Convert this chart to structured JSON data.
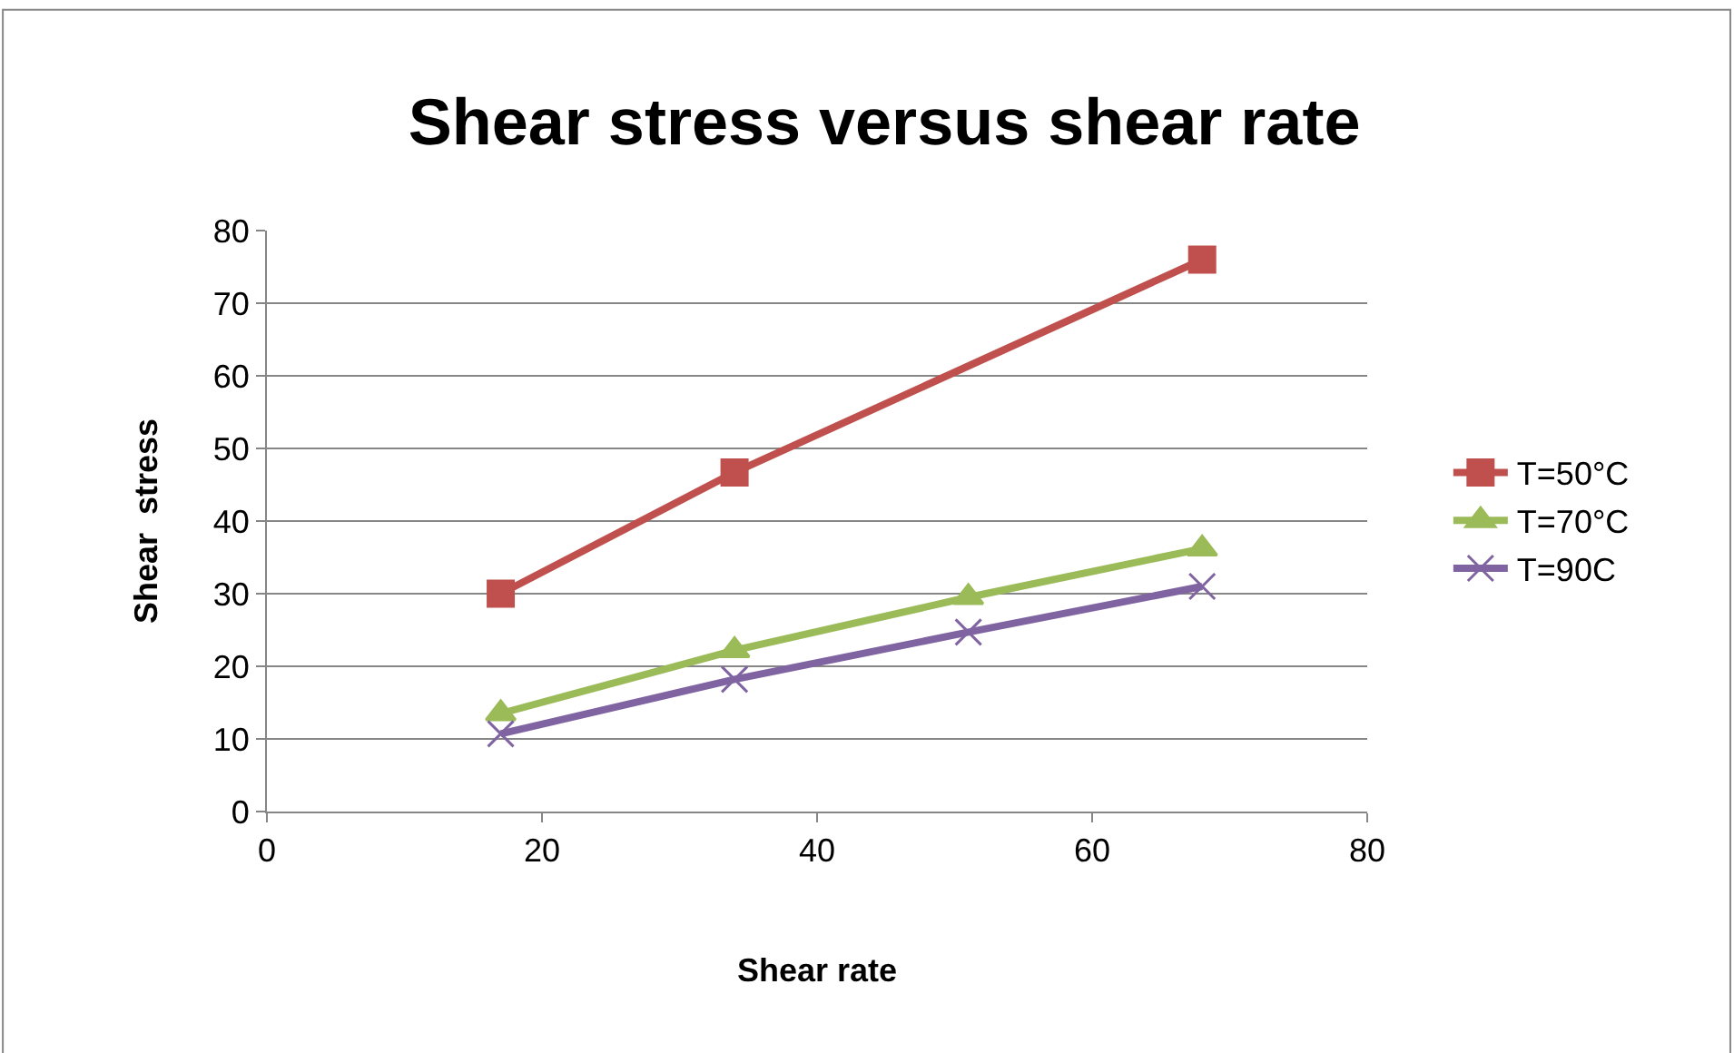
{
  "chart_data": {
    "type": "line",
    "title": "Shear stress versus shear rate",
    "xlabel": "Shear rate",
    "ylabel": "Shear  stress",
    "xlim": [
      0,
      80
    ],
    "xticks": [
      0,
      20,
      40,
      60,
      80
    ],
    "ylim": [
      0,
      80
    ],
    "yticks": [
      0,
      10,
      20,
      30,
      40,
      50,
      60,
      70,
      80
    ],
    "grid": "y",
    "legend": "right",
    "series": [
      {
        "name": "T=50°C",
        "color": "#c0504d",
        "marker": "square",
        "x": [
          17,
          34,
          68
        ],
        "values": [
          30,
          46.7,
          76
        ]
      },
      {
        "name": "T=70°C",
        "color": "#9bbb59",
        "marker": "triangle",
        "x": [
          17,
          34,
          51,
          68
        ],
        "values": [
          13.5,
          22.2,
          29.5,
          36.2
        ]
      },
      {
        "name": "T=90C",
        "color": "#8064a2",
        "marker": "cross",
        "x": [
          17,
          34,
          51,
          68
        ],
        "values": [
          10.7,
          18.2,
          24.7,
          31
        ]
      }
    ]
  }
}
